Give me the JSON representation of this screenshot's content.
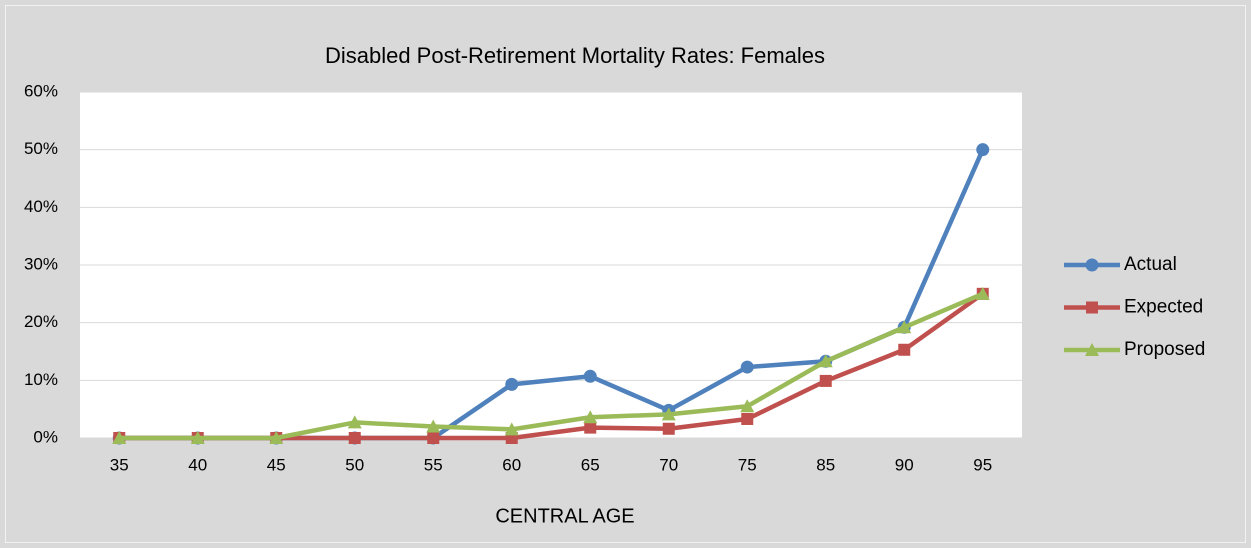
{
  "chart_data": {
    "type": "line",
    "title": "Disabled Post-Retirement Mortality Rates:  Females",
    "x_label": "CENTRAL AGE",
    "categories": [
      "35",
      "40",
      "45",
      "50",
      "55",
      "60",
      "65",
      "70",
      "75",
      "85",
      "90",
      "95"
    ],
    "series": [
      {
        "name": "Actual",
        "color": "#4f81bd",
        "marker": "circle",
        "values": [
          0,
          0,
          0,
          0,
          0,
          9.3,
          10.7,
          4.8,
          12.3,
          13.3,
          19.2,
          50
        ]
      },
      {
        "name": "Expected",
        "color": "#c0504d",
        "marker": "square",
        "values": [
          0,
          0,
          0,
          0,
          0,
          0,
          1.8,
          1.6,
          3.3,
          9.9,
          15.3,
          25
        ]
      },
      {
        "name": "Proposed",
        "color": "#9bbb59",
        "marker": "triangle",
        "values": [
          0,
          0,
          0,
          2.7,
          2.0,
          1.5,
          3.6,
          4.1,
          5.5,
          13.3,
          19.2,
          25
        ]
      }
    ],
    "ylim": [
      0,
      60
    ],
    "yticks": [
      {
        "value": 0,
        "label": "0%"
      },
      {
        "value": 10,
        "label": "10%"
      },
      {
        "value": 20,
        "label": "20%"
      },
      {
        "value": 30,
        "label": "30%"
      },
      {
        "value": 40,
        "label": "40%"
      },
      {
        "value": 50,
        "label": "50%"
      },
      {
        "value": 60,
        "label": "60%"
      }
    ],
    "grid": true,
    "legend": "right"
  }
}
